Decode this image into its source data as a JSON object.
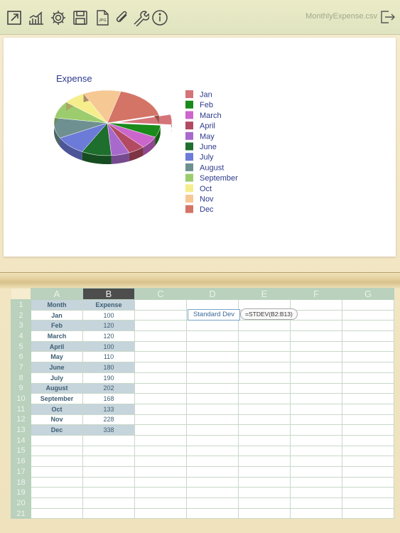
{
  "toolbar": {
    "filename": "MonthlyExpense.csv",
    "icons": [
      "expand-icon",
      "chart-icon",
      "gear-icon",
      "save-icon",
      "jpg-icon",
      "paperclip-icon",
      "wrench-icon",
      "info-icon"
    ]
  },
  "chart_data": {
    "type": "pie",
    "title": "Expense",
    "categories": [
      "Jan",
      "Feb",
      "March",
      "April",
      "May",
      "June",
      "July",
      "August",
      "September",
      "Oct",
      "Nov",
      "Dec"
    ],
    "values": [
      100,
      120,
      120,
      100,
      110,
      180,
      190,
      202,
      168,
      133,
      228,
      338
    ],
    "colors": [
      "#d47478",
      "#1a8a1a",
      "#cc66cc",
      "#b24a62",
      "#a869cc",
      "#1e6e2e",
      "#6c7ad8",
      "#6e9090",
      "#9ccc6e",
      "#f6ee8c",
      "#f6c894",
      "#d47466"
    ],
    "exploded": "Jan",
    "legend_position": "right"
  },
  "sheet": {
    "columns": [
      "A",
      "B",
      "C",
      "D",
      "E",
      "F",
      "G"
    ],
    "selected_column": "B",
    "rows": [
      "1",
      "2",
      "3",
      "4",
      "5",
      "6",
      "7",
      "8",
      "9",
      "10",
      "11",
      "12",
      "13",
      "14",
      "15",
      "16",
      "17",
      "18",
      "19",
      "20",
      "21"
    ],
    "header": [
      "Month",
      "Expense"
    ],
    "data": [
      [
        "Jan",
        "100"
      ],
      [
        "Feb",
        "120"
      ],
      [
        "March",
        "120"
      ],
      [
        "April",
        "100"
      ],
      [
        "May",
        "110"
      ],
      [
        "June",
        "180"
      ],
      [
        "July",
        "190"
      ],
      [
        "August",
        "202"
      ],
      [
        "September",
        "168"
      ],
      [
        "Oct",
        "133"
      ],
      [
        "Nov",
        "228"
      ],
      [
        "Dec",
        "338"
      ]
    ],
    "d2_label": "Standard Dev",
    "e2_formula": "=STDEV(B2:B13)"
  }
}
